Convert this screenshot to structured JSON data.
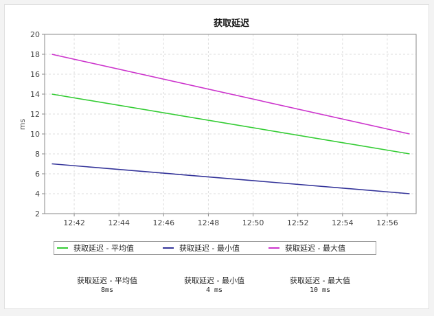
{
  "chart_data": {
    "type": "line",
    "title": "获取延迟",
    "ylabel": "ms",
    "xlabel": "",
    "ylim": [
      2,
      20
    ],
    "yticks": [
      "2",
      "4",
      "6",
      "8",
      "10",
      "12",
      "14",
      "16",
      "18",
      "20"
    ],
    "x_range": [
      "12:41",
      "12:57"
    ],
    "xticks": [
      "12:42",
      "12:44",
      "12:46",
      "12:48",
      "12:50",
      "12:52",
      "12:54",
      "12:56"
    ],
    "grid": true,
    "legend_position": "bottom",
    "series": [
      {
        "name": "获取延迟 - 平均值",
        "color": "#33cc33",
        "x": [
          "12:41",
          "12:57"
        ],
        "values": [
          14,
          8
        ]
      },
      {
        "name": "获取延迟 - 最小值",
        "color": "#333399",
        "x": [
          "12:41",
          "12:57"
        ],
        "values": [
          7,
          4
        ]
      },
      {
        "name": "获取延迟 - 最大值",
        "color": "#cc33cc",
        "x": [
          "12:41",
          "12:57"
        ],
        "values": [
          18,
          10
        ]
      }
    ]
  },
  "summary": [
    {
      "label": "获取延迟 - 平均值",
      "value": "8ms"
    },
    {
      "label": "获取延迟 - 最小值",
      "value": "4 ms"
    },
    {
      "label": "获取延迟 - 最大值",
      "value": "10 ms"
    }
  ]
}
